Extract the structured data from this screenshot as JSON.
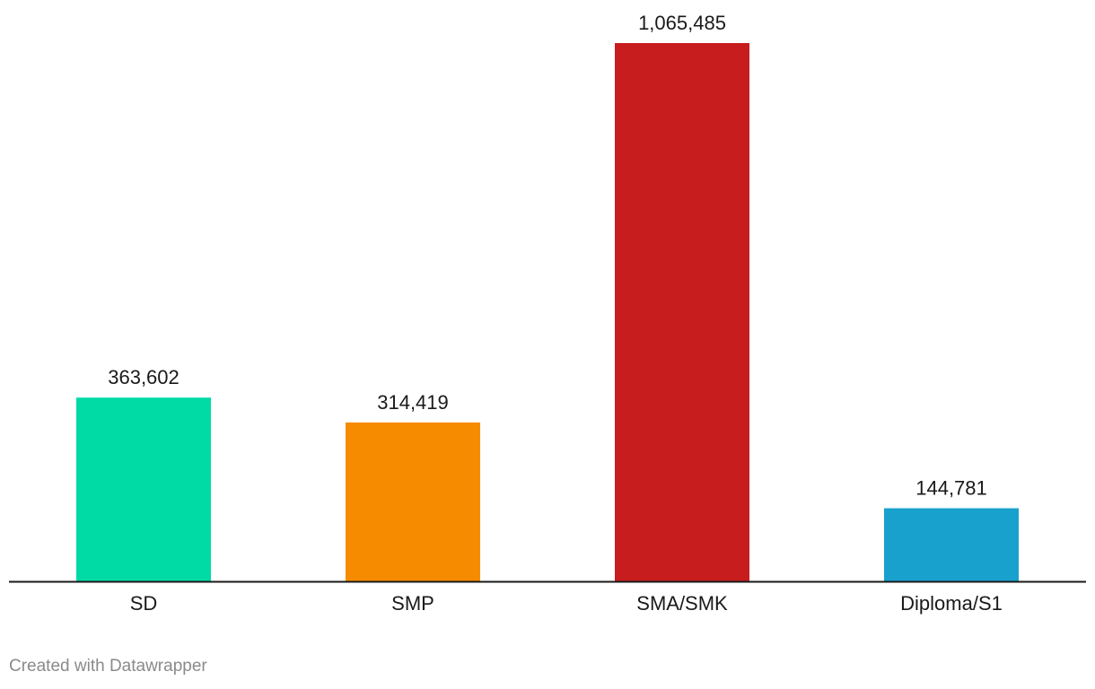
{
  "chart_data": {
    "type": "bar",
    "categories": [
      "SD",
      "SMP",
      "SMA/SMK",
      "Diploma/S1"
    ],
    "values": [
      363602,
      314419,
      1065485,
      144781
    ],
    "value_labels": [
      "363,602",
      "314,419",
      "1,065,485",
      "144,781"
    ],
    "colors": [
      "#00dba6",
      "#f78b00",
      "#c71d1e",
      "#18a1cd"
    ],
    "title": "",
    "xlabel": "",
    "ylabel": "",
    "ylim": [
      0,
      1065485
    ],
    "grid": false,
    "axis_color": "#1a1a1a"
  },
  "footer": {
    "credit": "Created with Datawrapper"
  }
}
